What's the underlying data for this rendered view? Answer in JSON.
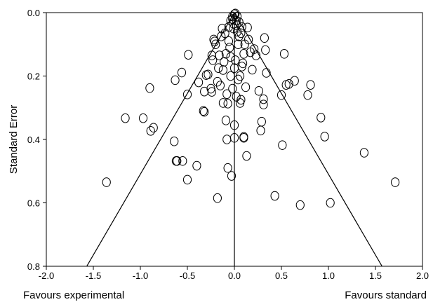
{
  "chart_data": {
    "type": "scatter",
    "title": "",
    "xlabel": "",
    "ylabel": "Standard Error",
    "xlim": [
      -2.0,
      2.0
    ],
    "ylim": [
      0.0,
      0.8
    ],
    "y_inverted": true,
    "x_ticks": [
      "-2.0",
      "-1.5",
      "-1.0",
      "-0.5",
      "0.0",
      "0.5",
      "1.0",
      "1.5",
      "2.0"
    ],
    "y_ticks": [
      "0.0",
      "0.2",
      "0.4",
      "0.6",
      "0.8"
    ],
    "grid": false,
    "marker": "open-circle",
    "left_annotation": "Favours experimental",
    "right_annotation": "Favours standard",
    "reference_lines": {
      "center": 0.0,
      "funnel_limits": [
        {
          "x1": 0.0,
          "y1": 0.0,
          "x2": -1.57,
          "y2": 0.8
        },
        {
          "x1": 0.0,
          "y1": 0.0,
          "x2": 1.57,
          "y2": 0.8
        }
      ]
    },
    "points": [
      {
        "x": -1.36,
        "y": 0.535
      },
      {
        "x": -1.16,
        "y": 0.333
      },
      {
        "x": -0.97,
        "y": 0.333
      },
      {
        "x": -0.9,
        "y": 0.238
      },
      {
        "x": -0.89,
        "y": 0.373
      },
      {
        "x": -0.86,
        "y": 0.363
      },
      {
        "x": -0.64,
        "y": 0.406
      },
      {
        "x": -0.62,
        "y": 0.468
      },
      {
        "x": -0.61,
        "y": 0.468
      },
      {
        "x": -0.55,
        "y": 0.468
      },
      {
        "x": -0.5,
        "y": 0.527
      },
      {
        "x": -0.63,
        "y": 0.213
      },
      {
        "x": -0.56,
        "y": 0.189
      },
      {
        "x": -0.5,
        "y": 0.258
      },
      {
        "x": -0.49,
        "y": 0.133
      },
      {
        "x": -0.4,
        "y": 0.483
      },
      {
        "x": -0.38,
        "y": 0.22
      },
      {
        "x": -0.33,
        "y": 0.31
      },
      {
        "x": -0.32,
        "y": 0.313
      },
      {
        "x": -0.32,
        "y": 0.249
      },
      {
        "x": -0.3,
        "y": 0.197
      },
      {
        "x": -0.28,
        "y": 0.195
      },
      {
        "x": -0.25,
        "y": 0.24
      },
      {
        "x": -0.24,
        "y": 0.25
      },
      {
        "x": -0.24,
        "y": 0.135
      },
      {
        "x": -0.23,
        "y": 0.15
      },
      {
        "x": -0.22,
        "y": 0.085
      },
      {
        "x": -0.21,
        "y": 0.091
      },
      {
        "x": -0.2,
        "y": 0.1
      },
      {
        "x": -0.18,
        "y": 0.218
      },
      {
        "x": -0.18,
        "y": 0.585
      },
      {
        "x": -0.16,
        "y": 0.135
      },
      {
        "x": -0.15,
        "y": 0.23
      },
      {
        "x": -0.14,
        "y": 0.075
      },
      {
        "x": -0.13,
        "y": 0.05
      },
      {
        "x": -0.12,
        "y": 0.181
      },
      {
        "x": -0.11,
        "y": 0.155
      },
      {
        "x": -0.1,
        "y": 0.065
      },
      {
        "x": -0.09,
        "y": 0.34
      },
      {
        "x": -0.08,
        "y": 0.4
      },
      {
        "x": -0.08,
        "y": 0.257
      },
      {
        "x": -0.07,
        "y": 0.287
      },
      {
        "x": -0.07,
        "y": 0.49
      },
      {
        "x": -0.06,
        "y": 0.045
      },
      {
        "x": -0.05,
        "y": 0.11
      },
      {
        "x": -0.04,
        "y": 0.025
      },
      {
        "x": -0.04,
        "y": 0.2
      },
      {
        "x": -0.03,
        "y": 0.515
      },
      {
        "x": -0.02,
        "y": 0.012
      },
      {
        "x": -0.01,
        "y": 0.035
      },
      {
        "x": 0.0,
        "y": 0.355
      },
      {
        "x": 0.0,
        "y": 0.395
      },
      {
        "x": 0.01,
        "y": 0.003
      },
      {
        "x": 0.02,
        "y": 0.025
      },
      {
        "x": 0.03,
        "y": 0.06
      },
      {
        "x": 0.04,
        "y": 0.211
      },
      {
        "x": 0.05,
        "y": 0.075
      },
      {
        "x": 0.06,
        "y": 0.285
      },
      {
        "x": 0.07,
        "y": 0.275
      },
      {
        "x": 0.08,
        "y": 0.045
      },
      {
        "x": 0.09,
        "y": 0.16
      },
      {
        "x": 0.1,
        "y": 0.395
      },
      {
        "x": 0.1,
        "y": 0.392
      },
      {
        "x": 0.11,
        "y": 0.1
      },
      {
        "x": 0.12,
        "y": 0.235
      },
      {
        "x": 0.13,
        "y": 0.452
      },
      {
        "x": 0.14,
        "y": 0.047
      },
      {
        "x": 0.15,
        "y": 0.085
      },
      {
        "x": 0.17,
        "y": 0.125
      },
      {
        "x": 0.19,
        "y": 0.18
      },
      {
        "x": 0.21,
        "y": 0.115
      },
      {
        "x": 0.23,
        "y": 0.135
      },
      {
        "x": 0.26,
        "y": 0.247
      },
      {
        "x": 0.28,
        "y": 0.372
      },
      {
        "x": 0.29,
        "y": 0.344
      },
      {
        "x": 0.31,
        "y": 0.273
      },
      {
        "x": 0.31,
        "y": 0.29
      },
      {
        "x": 0.32,
        "y": 0.08
      },
      {
        "x": 0.33,
        "y": 0.118
      },
      {
        "x": 0.34,
        "y": 0.19
      },
      {
        "x": 0.43,
        "y": 0.578
      },
      {
        "x": 0.5,
        "y": 0.26
      },
      {
        "x": 0.51,
        "y": 0.418
      },
      {
        "x": 0.53,
        "y": 0.13
      },
      {
        "x": 0.55,
        "y": 0.228
      },
      {
        "x": 0.58,
        "y": 0.225
      },
      {
        "x": 0.64,
        "y": 0.215
      },
      {
        "x": 0.7,
        "y": 0.607
      },
      {
        "x": 0.78,
        "y": 0.26
      },
      {
        "x": 0.81,
        "y": 0.228
      },
      {
        "x": 0.92,
        "y": 0.331
      },
      {
        "x": 0.96,
        "y": 0.391
      },
      {
        "x": 1.02,
        "y": 0.6
      },
      {
        "x": 1.38,
        "y": 0.442
      },
      {
        "x": 1.71,
        "y": 0.535
      },
      {
        "x": -0.02,
        "y": 0.02
      },
      {
        "x": 0.0,
        "y": 0.005
      },
      {
        "x": 0.03,
        "y": 0.012
      },
      {
        "x": -0.01,
        "y": 0.05
      },
      {
        "x": 0.02,
        "y": 0.04
      },
      {
        "x": 0.05,
        "y": 0.03
      },
      {
        "x": -0.06,
        "y": 0.09
      },
      {
        "x": 0.04,
        "y": 0.1
      },
      {
        "x": 0.07,
        "y": 0.065
      },
      {
        "x": -0.09,
        "y": 0.13
      },
      {
        "x": 0.01,
        "y": 0.15
      },
      {
        "x": 0.0,
        "y": 0.175
      },
      {
        "x": -0.02,
        "y": 0.24
      },
      {
        "x": 0.06,
        "y": 0.2
      },
      {
        "x": -0.12,
        "y": 0.285
      },
      {
        "x": 0.1,
        "y": 0.13
      },
      {
        "x": -0.17,
        "y": 0.175
      },
      {
        "x": 0.02,
        "y": 0.265
      },
      {
        "x": 0.08,
        "y": 0.17
      },
      {
        "x": -0.04,
        "y": 0.14
      }
    ]
  }
}
